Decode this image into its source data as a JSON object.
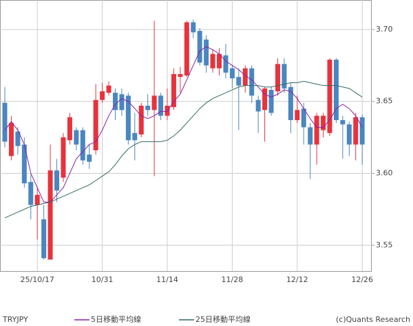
{
  "chart_data": {
    "type": "candlestick",
    "symbol": "TRYJPY",
    "copyright": "(c)Quants Research",
    "categories": [
      null,
      null,
      null,
      null,
      null,
      "25/10/17",
      null,
      null,
      null,
      null,
      null,
      null,
      null,
      null,
      null,
      "10/31",
      null,
      null,
      null,
      null,
      null,
      null,
      null,
      null,
      null,
      "11/14",
      null,
      null,
      null,
      null,
      null,
      null,
      null,
      null,
      null,
      "11/28",
      null,
      null,
      null,
      null,
      null,
      null,
      null,
      null,
      null,
      "12/12",
      null,
      null,
      null,
      null,
      null,
      null,
      null,
      null,
      null,
      "12/26"
    ],
    "open": [
      3.649,
      3.612,
      3.629,
      3.62,
      3.594,
      3.578,
      3.568,
      3.54,
      3.602,
      3.597,
      3.623,
      3.63,
      3.63,
      3.613,
      3.616,
      3.651,
      3.656,
      3.656,
      3.655,
      3.654,
      3.628,
      3.627,
      3.647,
      3.644,
      3.654,
      3.64,
      3.646,
      3.667,
      3.668,
      3.705,
      3.699,
      3.693,
      3.673,
      3.673,
      3.682,
      3.673,
      3.667,
      3.661,
      3.673,
      3.651,
      3.644,
      3.658,
      3.657,
      3.676,
      3.66,
      3.637,
      3.645,
      3.632,
      3.62,
      3.63,
      3.628,
      3.679,
      3.637,
      3.634,
      3.62,
      3.639
    ],
    "high": [
      3.66,
      3.64,
      3.632,
      3.625,
      3.599,
      3.59,
      3.578,
      3.62,
      3.61,
      3.628,
      3.642,
      3.632,
      3.632,
      3.62,
      3.662,
      3.663,
      3.664,
      3.659,
      3.659,
      3.656,
      3.642,
      3.649,
      3.655,
      3.706,
      3.656,
      3.659,
      3.673,
      3.674,
      3.706,
      3.707,
      3.701,
      3.696,
      3.686,
      3.687,
      3.69,
      3.675,
      3.673,
      3.675,
      3.675,
      3.654,
      3.66,
      3.66,
      3.68,
      3.68,
      3.663,
      3.654,
      3.649,
      3.635,
      3.642,
      3.642,
      3.68,
      3.68,
      3.64,
      3.636,
      3.642,
      3.641
    ],
    "low": [
      3.618,
      3.609,
      3.613,
      3.59,
      3.568,
      3.554,
      3.54,
      3.54,
      3.58,
      3.594,
      3.62,
      3.616,
      3.606,
      3.603,
      3.613,
      3.649,
      3.654,
      3.637,
      3.64,
      3.62,
      3.609,
      3.625,
      3.64,
      3.598,
      3.637,
      3.637,
      3.644,
      3.656,
      3.667,
      3.694,
      3.675,
      3.67,
      3.67,
      3.668,
      3.666,
      3.659,
      3.63,
      3.656,
      3.649,
      3.628,
      3.622,
      3.64,
      3.654,
      3.656,
      3.628,
      3.635,
      3.62,
      3.596,
      3.606,
      3.625,
      3.626,
      3.635,
      3.61,
      3.612,
      3.609,
      3.606
    ],
    "close": [
      3.622,
      3.635,
      3.619,
      3.593,
      3.578,
      3.585,
      3.541,
      3.602,
      3.588,
      3.625,
      3.639,
      3.62,
      3.609,
      3.608,
      3.651,
      3.657,
      3.661,
      3.644,
      3.644,
      3.623,
      3.623,
      3.647,
      3.644,
      3.654,
      3.64,
      3.647,
      3.669,
      3.669,
      3.705,
      3.698,
      3.677,
      3.675,
      3.683,
      3.683,
      3.67,
      3.666,
      3.661,
      3.673,
      3.654,
      3.643,
      3.659,
      3.642,
      3.676,
      3.659,
      3.637,
      3.644,
      3.632,
      3.62,
      3.64,
      3.64,
      3.679,
      3.637,
      3.634,
      3.62,
      3.639,
      3.62
    ],
    "up_color": "#e8323c",
    "down_color": "#4a86c0",
    "series": [
      {
        "name": "5日移動平均線",
        "color": "#8a1fa8",
        "values": [
          3.63,
          3.636,
          3.63,
          3.62,
          3.6,
          3.59,
          3.58,
          3.58,
          3.585,
          3.59,
          3.6,
          3.61,
          3.615,
          3.62,
          3.622,
          3.63,
          3.64,
          3.648,
          3.652,
          3.65,
          3.645,
          3.64,
          3.638,
          3.64,
          3.643,
          3.643,
          3.65,
          3.655,
          3.665,
          3.675,
          3.685,
          3.688,
          3.686,
          3.683,
          3.678,
          3.675,
          3.672,
          3.668,
          3.665,
          3.66,
          3.655,
          3.653,
          3.655,
          3.658,
          3.657,
          3.652,
          3.645,
          3.638,
          3.632,
          3.632,
          3.637,
          3.645,
          3.648,
          3.645,
          3.64,
          3.632
        ]
      },
      {
        "name": "25日移動平均線",
        "color": "#2f6a63",
        "values": [
          3.569,
          3.571,
          3.573,
          3.575,
          3.577,
          3.578,
          3.579,
          3.58,
          3.582,
          3.584,
          3.586,
          3.588,
          3.59,
          3.592,
          3.595,
          3.598,
          3.601,
          3.606,
          3.612,
          3.617,
          3.62,
          3.622,
          3.622,
          3.622,
          3.622,
          3.623,
          3.626,
          3.63,
          3.635,
          3.64,
          3.645,
          3.649,
          3.652,
          3.654,
          3.656,
          3.658,
          3.66,
          3.661,
          3.661,
          3.661,
          3.66,
          3.66,
          3.661,
          3.662,
          3.663,
          3.663,
          3.664,
          3.663,
          3.662,
          3.661,
          3.661,
          3.661,
          3.66,
          3.659,
          3.656,
          3.653
        ]
      }
    ],
    "ylim": [
      3.532,
      3.7205
    ],
    "yticks": [
      {
        "value": 3.7,
        "label": "3.70"
      },
      3.65,
      {
        "value": 3.6,
        "label": "3.60"
      },
      3.55
    ],
    "grid": true
  }
}
